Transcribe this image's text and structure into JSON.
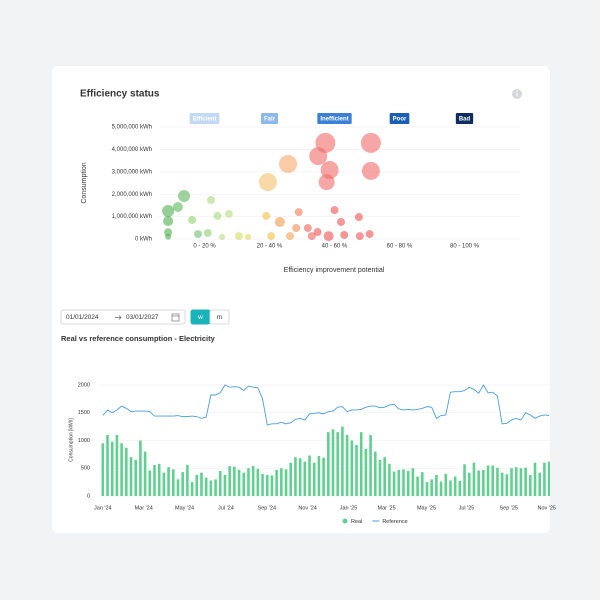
{
  "controls": {
    "start_date": "01/01/2024",
    "end_date": "03/01/2027",
    "buttons": [
      "w",
      "m"
    ],
    "active": 0
  },
  "chart_data": [
    {
      "type": "bubble",
      "title": "Efficiency status",
      "xlabel": "Efficiency improvement potential",
      "ylabel": "Consumption",
      "bands": [
        {
          "label": "Efficient",
          "color": "#c3d9f3"
        },
        {
          "label": "Fair",
          "color": "#8cb9ea"
        },
        {
          "label": "Inefficient",
          "color": "#3b80d6"
        },
        {
          "label": "Poor",
          "color": "#1b5fb5"
        },
        {
          "label": "Bad",
          "color": "#0e2f5e"
        }
      ],
      "xlim": [
        -4,
        106
      ],
      "xticks": [
        {
          "value": 10,
          "label": "0 - 20 %"
        },
        {
          "value": 30,
          "label": "20 - 40 %"
        },
        {
          "value": 50,
          "label": "40 - 60 %"
        },
        {
          "value": 70,
          "label": "60 - 80 %"
        },
        {
          "value": 90,
          "label": "80 - 100 %"
        }
      ],
      "ylim": [
        0,
        5000000
      ],
      "yticks": [
        {
          "value": 0,
          "label": "0 kWh"
        },
        {
          "value": 1000000,
          "label": "1,000,000 kWh"
        },
        {
          "value": 2000000,
          "label": "2,000,000 kWh"
        },
        {
          "value": 3000000,
          "label": "3,000,000 kWh"
        },
        {
          "value": 4000000,
          "label": "4,000,000 kWh"
        },
        {
          "value": 5000000,
          "label": "5,000,000 kWh"
        }
      ],
      "grid": true,
      "series": [
        {
          "x": [
            -1.2,
            -1.2,
            -1.2,
            -1.2,
            1.8,
            3.7,
            6.2,
            8,
            11,
            12,
            14,
            17.5,
            15.4,
            20.6,
            23.4,
            29,
            29.5,
            35.7,
            33.2,
            30.5,
            36.3,
            39,
            38.2,
            41.8,
            43,
            44.8,
            45,
            47.2,
            48.5,
            47.6,
            48.2,
            50,
            52,
            53,
            57.5,
            57.8,
            61.2,
            61.2,
            60.8
          ],
          "values": [
            1250000,
            800000,
            300000,
            100000,
            1430000,
            1920000,
            850000,
            220000,
            270000,
            1740000,
            1030000,
            1120000,
            90000,
            130000,
            90000,
            1030000,
            2540000,
            3350000,
            760000,
            130000,
            130000,
            1200000,
            490000,
            490000,
            130000,
            310000,
            3700000,
            4290000,
            3080000,
            2540000,
            130000,
            1290000,
            760000,
            180000,
            980000,
            130000,
            4290000,
            3040000,
            220000
          ],
          "sizes": [
            6,
            5,
            4,
            3,
            5,
            6,
            4,
            4,
            4,
            4,
            4,
            4,
            3,
            4,
            3,
            4,
            9,
            9,
            5,
            4,
            4,
            4,
            4,
            4,
            4,
            4,
            9,
            10,
            9,
            8,
            5,
            4,
            4,
            4,
            4,
            4,
            10,
            9,
            4
          ],
          "colors": [
            "#4caf50",
            "#4caf50",
            "#4caf50",
            "#4caf50",
            "#5cb85c",
            "#5cb85c",
            "#8fd06e",
            "#6cc06c",
            "#8fd06e",
            "#a5d87a",
            "#a5d87a",
            "#b7de7c",
            "#b7de7c",
            "#d3dd5a",
            "#e6d24e",
            "#f2c14a",
            "#f5c26b",
            "#f6a86b",
            "#f29a4a",
            "#f2c14a",
            "#f0a050",
            "#f07a50",
            "#f28a50",
            "#f06050",
            "#f06060",
            "#f05050",
            "#f26b6b",
            "#f26b6b",
            "#f26b6b",
            "#f26b6b",
            "#f05050",
            "#f05050",
            "#f05050",
            "#f05050",
            "#f05050",
            "#f05050",
            "#f26b6b",
            "#f26b6b",
            "#f05050"
          ]
        }
      ]
    },
    {
      "type": "bar-line",
      "title": "Real vs reference consumption - Electricity",
      "ylabel": "Consumption [kWh]",
      "x": [
        0,
        1,
        2,
        3,
        4,
        5,
        6,
        7,
        8,
        9,
        10,
        11,
        12,
        13,
        14,
        15,
        16,
        17,
        18,
        19,
        20,
        21,
        22,
        23,
        24,
        25,
        26,
        27,
        28,
        29,
        30,
        31,
        32,
        33,
        34,
        35,
        36,
        37,
        38,
        39,
        40,
        41,
        42,
        43,
        44,
        45,
        46,
        47,
        48,
        49,
        50,
        51,
        52,
        53,
        54,
        55,
        56,
        57,
        58,
        59,
        60,
        61,
        62,
        63,
        64,
        65,
        66,
        67,
        68,
        69,
        70,
        71,
        72,
        73,
        74,
        75,
        76,
        77,
        78,
        79,
        80,
        81,
        82,
        83,
        84,
        85,
        86,
        87,
        88,
        89,
        90,
        91,
        92,
        93,
        94,
        95
      ],
      "xlim": [
        -0.6,
        95.4
      ],
      "xticks": [
        {
          "value": 0,
          "label": "Jan '24"
        },
        {
          "value": 8.7,
          "label": "Mar '24"
        },
        {
          "value": 17.4,
          "label": "May '24"
        },
        {
          "value": 26.2,
          "label": "Jul '24"
        },
        {
          "value": 34.9,
          "label": "Sep '24"
        },
        {
          "value": 43.6,
          "label": "Nov '24"
        },
        {
          "value": 52.3,
          "label": "Jan '25"
        },
        {
          "value": 60.4,
          "label": "Mar '25"
        },
        {
          "value": 68.9,
          "label": "May '25"
        },
        {
          "value": 77.4,
          "label": "Jul '25"
        },
        {
          "value": 86.4,
          "label": "Sep '25"
        },
        {
          "value": 94.5,
          "label": "Nov '25"
        }
      ],
      "ylim": [
        0,
        2000
      ],
      "yticks": [
        0,
        500,
        1000,
        1500,
        2000
      ],
      "grid": true,
      "series": [
        {
          "name": "Real",
          "type": "bar",
          "color": "#5fd08f",
          "values": [
            950,
            1100,
            980,
            1100,
            950,
            870,
            700,
            650,
            1000,
            800,
            460,
            560,
            580,
            420,
            520,
            480,
            300,
            430,
            560,
            250,
            380,
            420,
            330,
            280,
            300,
            450,
            380,
            540,
            530,
            470,
            420,
            500,
            540,
            490,
            400,
            380,
            370,
            470,
            500,
            480,
            600,
            700,
            680,
            620,
            730,
            600,
            720,
            690,
            1150,
            1200,
            1150,
            1250,
            1100,
            1000,
            920,
            1150,
            850,
            1100,
            800,
            650,
            700,
            580,
            440,
            470,
            480,
            450,
            500,
            350,
            430,
            250,
            300,
            380,
            260,
            400,
            280,
            350,
            270,
            570,
            420,
            600,
            460,
            470,
            550,
            550,
            510,
            420,
            390,
            500,
            520,
            500,
            510,
            380,
            600,
            420,
            600,
            620
          ]
        },
        {
          "name": "Reference",
          "type": "line",
          "color": "#4a9ee0",
          "values": [
            1450,
            1550,
            1500,
            1550,
            1620,
            1580,
            1520,
            1530,
            1530,
            1530,
            1520,
            1440,
            1440,
            1440,
            1440,
            1440,
            1450,
            1430,
            1430,
            1440,
            1430,
            1400,
            1420,
            1820,
            1820,
            1860,
            2000,
            1960,
            1970,
            1960,
            1900,
            1980,
            1960,
            1950,
            1750,
            1280,
            1300,
            1300,
            1330,
            1300,
            1320,
            1380,
            1400,
            1370,
            1480,
            1490,
            1500,
            1480,
            1520,
            1530,
            1600,
            1610,
            1520,
            1550,
            1550,
            1560,
            1600,
            1620,
            1620,
            1590,
            1600,
            1640,
            1650,
            1570,
            1550,
            1560,
            1550,
            1560,
            1580,
            1610,
            1600,
            1400,
            1450,
            1460,
            1870,
            1880,
            1880,
            1900,
            1960,
            1920,
            1850,
            2000,
            1860,
            1870,
            1800,
            1300,
            1310,
            1370,
            1400,
            1370,
            1500,
            1460,
            1400,
            1440,
            1460,
            1450
          ]
        }
      ]
    }
  ]
}
